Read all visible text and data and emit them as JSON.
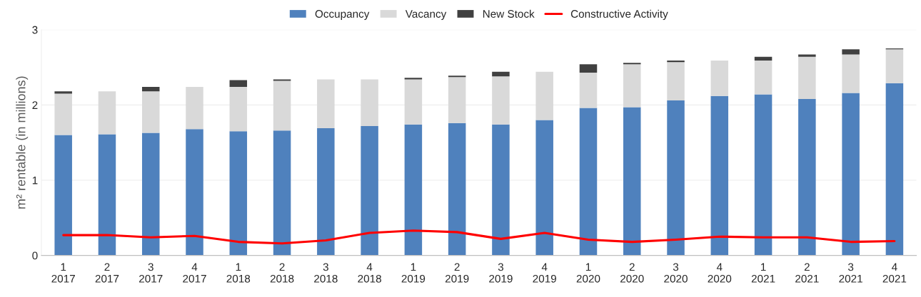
{
  "chart_data": {
    "type": "bar",
    "stacked": true,
    "ylabel": "m² rentable (in millions)",
    "categories": [
      "1\n2017",
      "2\n2017",
      "3\n2017",
      "4\n2017",
      "1\n2018",
      "2\n2018",
      "3\n2018",
      "4\n2018",
      "1\n2019",
      "2\n2019",
      "3\n2019",
      "4\n2019",
      "1\n2020",
      "2\n2020",
      "3\n2020",
      "4\n2020",
      "1\n2021",
      "2\n2021",
      "3\n2021",
      "4\n2021"
    ],
    "series": [
      {
        "name": "Occupancy",
        "color": "#4f81bd",
        "values": [
          1.6,
          1.61,
          1.63,
          1.68,
          1.65,
          1.66,
          1.69,
          1.72,
          1.74,
          1.76,
          1.74,
          1.8,
          1.96,
          1.97,
          2.06,
          2.12,
          2.14,
          2.08,
          2.16,
          2.29
        ]
      },
      {
        "name": "Vacancy",
        "color": "#d9d9d9",
        "values": [
          0.55,
          0.57,
          0.55,
          0.56,
          0.59,
          0.66,
          0.65,
          0.62,
          0.6,
          0.61,
          0.64,
          0.64,
          0.47,
          0.57,
          0.51,
          0.47,
          0.45,
          0.56,
          0.51,
          0.45
        ]
      },
      {
        "name": "New Stock",
        "color": "#404040",
        "values": [
          0.03,
          null,
          0.06,
          null,
          0.09,
          0.02,
          null,
          null,
          0.02,
          0.02,
          0.06,
          null,
          0.11,
          0.02,
          0.02,
          null,
          0.05,
          0.03,
          0.07,
          0.01
        ]
      },
      {
        "name": "Constructive Activity",
        "type": "line",
        "color": "#ff0000",
        "values": [
          0.27,
          0.27,
          0.24,
          0.26,
          0.18,
          0.16,
          0.2,
          0.3,
          0.33,
          0.31,
          0.22,
          0.3,
          0.21,
          0.18,
          0.21,
          0.25,
          0.24,
          0.24,
          0.18,
          0.19
        ]
      }
    ],
    "ylim": [
      0,
      3
    ],
    "yticks": [
      0,
      1,
      2,
      3
    ],
    "grid": "y",
    "legend": "top",
    "marker": "none",
    "line_style": "solid"
  }
}
